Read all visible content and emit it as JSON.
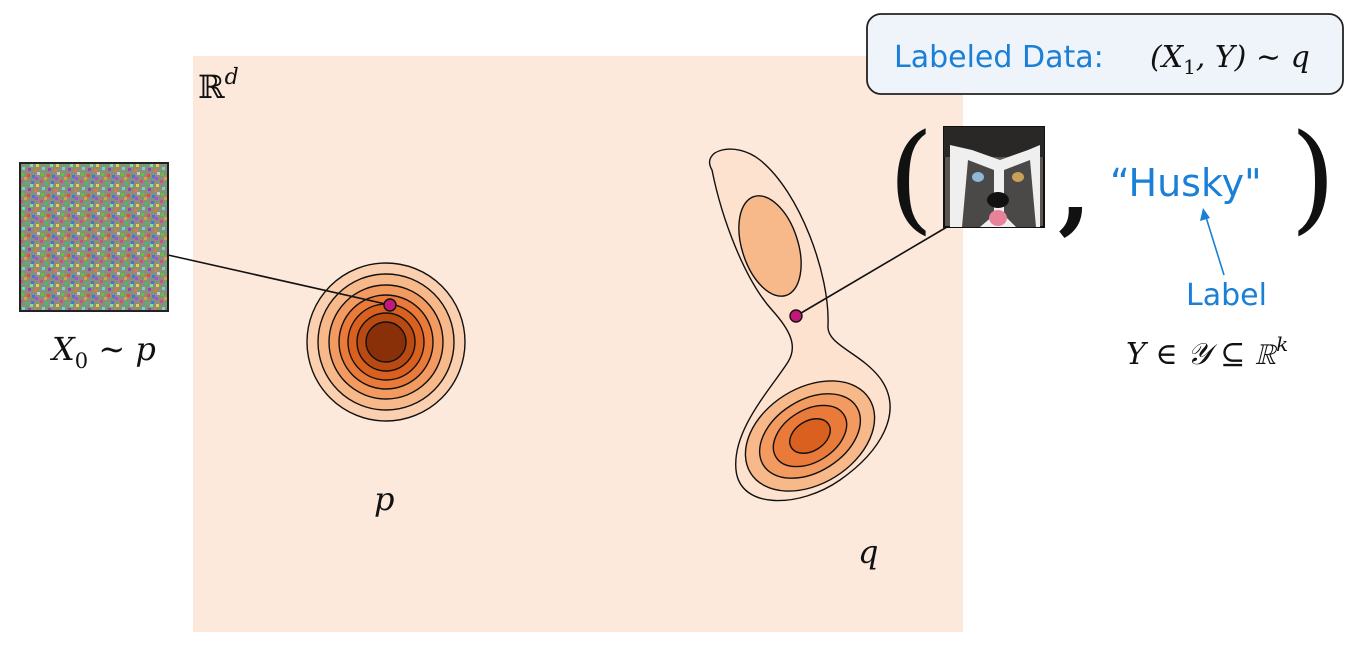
{
  "space_label": "ℝ",
  "space_dim": "d",
  "noise_label": {
    "var": "X",
    "sub": "0",
    "rel": " ∼ p"
  },
  "source_dist_label": "p",
  "target_dist_label": "q",
  "callout": {
    "prefix": "Labeled Data:",
    "formula_open": "(X",
    "formula_sub": "1",
    "formula_rest": ", Y) ∼ q"
  },
  "tuple": {
    "open_paren": "(",
    "comma": ",",
    "close_paren": ")",
    "label_text": "“Husky\""
  },
  "label_annotation": {
    "title": "Label",
    "formula_main": "Y ∈ 𝒴 ⊆ ℝ",
    "formula_sup": "k"
  },
  "colors": {
    "region_bg": "#fde9db",
    "accent_blue": "#1a7fd6",
    "point_magenta": "#c2187a",
    "callout_bg": "#eef4fa",
    "contour_levels": [
      "#fde3cf",
      "#fbd0b0",
      "#f8b98a",
      "#f39a60",
      "#ea7a3a",
      "#d9601f",
      "#b84a12",
      "#8a3008"
    ]
  },
  "icons": {
    "noise_image": "noise-image-icon",
    "husky_photo": "husky-photo-icon"
  }
}
